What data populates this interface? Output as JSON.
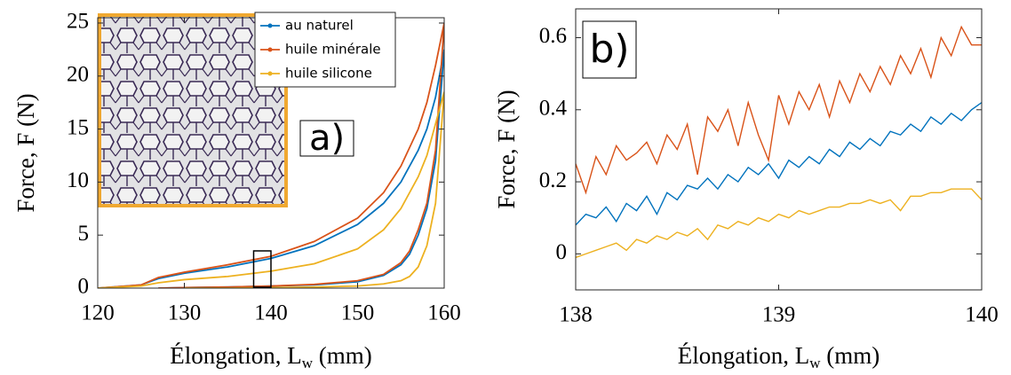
{
  "chart_data": [
    {
      "type": "line",
      "xlabel": [
        "Élongation, L",
        "w",
        " (mm)"
      ],
      "ylabel": "Force, F (N)",
      "annotation": "a)",
      "legend": "upper right",
      "xlim": [
        120,
        160
      ],
      "xticks": [
        120,
        130,
        140,
        150,
        160
      ],
      "ylim": [
        0,
        25.5
      ],
      "yticks": [
        0,
        5,
        10,
        15,
        20,
        25
      ],
      "series": [
        {
          "name": "au naturel",
          "color": "#0072bd",
          "x": [
            120,
            125,
            127,
            130,
            135,
            140,
            145,
            150,
            153,
            155,
            157,
            158,
            159,
            160,
            159,
            158,
            157,
            156,
            155,
            153,
            150,
            145,
            140,
            135,
            130,
            127
          ],
          "values": [
            0,
            0.3,
            0.9,
            1.4,
            2.0,
            2.8,
            4.0,
            6.0,
            8,
            10,
            13,
            15,
            18,
            22.5,
            12,
            7.5,
            5,
            3.2,
            2.2,
            1.2,
            0.6,
            0.3,
            0.2,
            0.1,
            0.05,
            0
          ]
        },
        {
          "name": "huile minérale",
          "color": "#d95319",
          "x": [
            120,
            125,
            127,
            130,
            135,
            140,
            145,
            150,
            153,
            155,
            157,
            158,
            159,
            160,
            159,
            158,
            157,
            156,
            155,
            153,
            150,
            145,
            140,
            135,
            130,
            127
          ],
          "values": [
            0,
            0.3,
            1.0,
            1.5,
            2.2,
            3.0,
            4.4,
            6.6,
            9,
            11.5,
            15,
            17.5,
            21,
            25,
            13,
            8,
            5.5,
            3.5,
            2.4,
            1.3,
            0.7,
            0.35,
            0.2,
            0.1,
            0.05,
            0
          ]
        },
        {
          "name": "huile silicone",
          "color": "#edb120",
          "x": [
            120,
            125,
            127,
            130,
            135,
            140,
            145,
            150,
            153,
            155,
            157,
            158,
            159,
            160,
            159,
            158,
            157,
            156,
            155,
            153,
            150,
            145,
            140,
            135,
            130
          ],
          "values": [
            0,
            0.2,
            0.5,
            0.8,
            1.1,
            1.6,
            2.3,
            3.7,
            5.5,
            7.5,
            10.5,
            12.5,
            15.5,
            18.5,
            8,
            4,
            2,
            1.1,
            0.7,
            0.4,
            0.2,
            0.1,
            0.05,
            0,
            0
          ]
        }
      ]
    },
    {
      "type": "line",
      "xlabel": [
        "Élongation, L",
        "w",
        " (mm)"
      ],
      "ylabel": "Force, F (N)",
      "annotation": "b)",
      "xlim": [
        138,
        140
      ],
      "xticks": [
        138,
        139,
        140
      ],
      "ylim": [
        -0.1,
        0.68
      ],
      "yticks": [
        0,
        0.2,
        0.4,
        0.6
      ],
      "x": [
        138,
        138.05,
        138.1,
        138.15,
        138.2,
        138.25,
        138.3,
        138.35,
        138.4,
        138.45,
        138.5,
        138.55,
        138.6,
        138.65,
        138.7,
        138.75,
        138.8,
        138.85,
        138.9,
        138.95,
        139,
        139.05,
        139.1,
        139.15,
        139.2,
        139.25,
        139.3,
        139.35,
        139.4,
        139.45,
        139.5,
        139.55,
        139.6,
        139.65,
        139.7,
        139.75,
        139.8,
        139.85,
        139.9,
        139.95,
        140
      ],
      "series": [
        {
          "color": "#d95319",
          "values": [
            0.25,
            0.17,
            0.27,
            0.22,
            0.3,
            0.26,
            0.28,
            0.31,
            0.25,
            0.33,
            0.29,
            0.36,
            0.22,
            0.38,
            0.34,
            0.4,
            0.3,
            0.42,
            0.33,
            0.26,
            0.44,
            0.36,
            0.45,
            0.4,
            0.47,
            0.38,
            0.48,
            0.42,
            0.5,
            0.45,
            0.52,
            0.47,
            0.55,
            0.5,
            0.57,
            0.49,
            0.6,
            0.55,
            0.63,
            0.58,
            0.58
          ]
        },
        {
          "color": "#0072bd",
          "values": [
            0.08,
            0.11,
            0.1,
            0.13,
            0.09,
            0.14,
            0.12,
            0.16,
            0.11,
            0.17,
            0.15,
            0.19,
            0.18,
            0.21,
            0.18,
            0.22,
            0.2,
            0.24,
            0.22,
            0.25,
            0.21,
            0.26,
            0.24,
            0.27,
            0.25,
            0.29,
            0.27,
            0.31,
            0.29,
            0.32,
            0.3,
            0.34,
            0.33,
            0.36,
            0.34,
            0.38,
            0.36,
            0.39,
            0.37,
            0.4,
            0.42
          ]
        },
        {
          "color": "#edb120",
          "values": [
            -0.01,
            0.0,
            0.01,
            0.02,
            0.03,
            0.01,
            0.04,
            0.03,
            0.05,
            0.04,
            0.06,
            0.05,
            0.07,
            0.04,
            0.08,
            0.07,
            0.09,
            0.08,
            0.1,
            0.09,
            0.11,
            0.1,
            0.12,
            0.11,
            0.12,
            0.13,
            0.13,
            0.14,
            0.14,
            0.15,
            0.14,
            0.15,
            0.12,
            0.16,
            0.16,
            0.17,
            0.17,
            0.18,
            0.18,
            0.18,
            0.15
          ]
        }
      ]
    }
  ]
}
